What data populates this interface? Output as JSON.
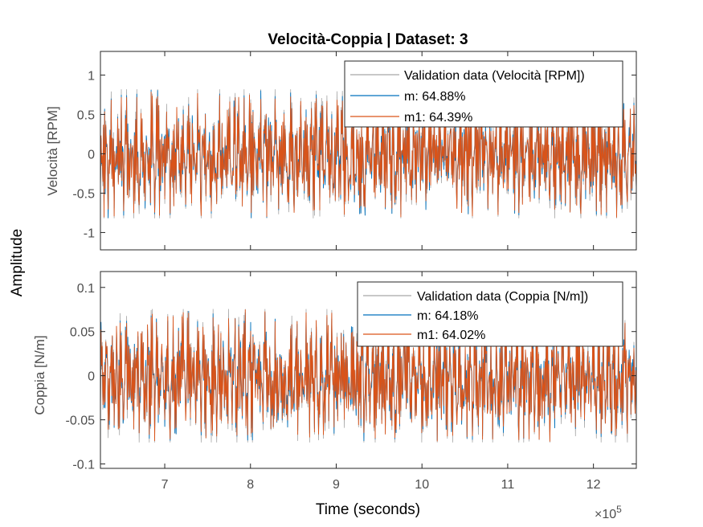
{
  "figure": {
    "title": "Velocità-Coppia | Dataset: 3",
    "shared_ylabel": "Amplitude",
    "xlabel": "Time (seconds)",
    "x_exponent_base": "×10",
    "x_exponent_power": "5"
  },
  "colors": {
    "validation": "#a6a6a6",
    "m": "#0072bd",
    "m1": "#d95319",
    "axis": "#262626",
    "tick_text": "#4d4d4d"
  },
  "chart_data": [
    {
      "type": "line",
      "ylabel": "Velocità [RPM]",
      "xlim": [
        6.25,
        12.5
      ],
      "ylim": [
        -1.22,
        1.3
      ],
      "xticks": [
        7,
        8,
        9,
        10,
        11,
        12
      ],
      "xtick_labels": [
        "7",
        "8",
        "9",
        "10",
        "11",
        "12"
      ],
      "yticks": [
        1,
        0.5,
        0,
        -0.5,
        -1
      ],
      "ytick_labels": [
        "1",
        "0.5",
        "0",
        "-0.5",
        "-1"
      ],
      "x_multiplier": 100000,
      "legend_position": "top-right",
      "series": [
        {
          "name": "Validation data (Velocità [RPM])",
          "color": "#a6a6a6",
          "amplitude": 0.78
        },
        {
          "name": "m: 64.88%",
          "color": "#0072bd",
          "amplitude": 0.72
        },
        {
          "name": "m1: 64.39%",
          "color": "#d95319",
          "amplitude": 0.72
        }
      ]
    },
    {
      "type": "line",
      "ylabel": "Coppia [N/m]",
      "xlim": [
        6.25,
        12.5
      ],
      "ylim": [
        -0.105,
        0.118
      ],
      "xticks": [
        7,
        8,
        9,
        10,
        11,
        12
      ],
      "xtick_labels": [
        "7",
        "8",
        "9",
        "10",
        "11",
        "12"
      ],
      "yticks": [
        0.1,
        0.05,
        0,
        -0.05,
        -0.1
      ],
      "ytick_labels": [
        "0.1",
        "0.05",
        "0",
        "-0.05",
        "-0.1"
      ],
      "x_multiplier": 100000,
      "legend_position": "top-right",
      "series": [
        {
          "name": "Validation data (Coppia [N/m])",
          "color": "#a6a6a6",
          "amplitude": 0.072
        },
        {
          "name": "m: 64.18%",
          "color": "#0072bd",
          "amplitude": 0.066
        },
        {
          "name": "m1: 64.02%",
          "color": "#d95319",
          "amplitude": 0.066
        }
      ]
    }
  ]
}
